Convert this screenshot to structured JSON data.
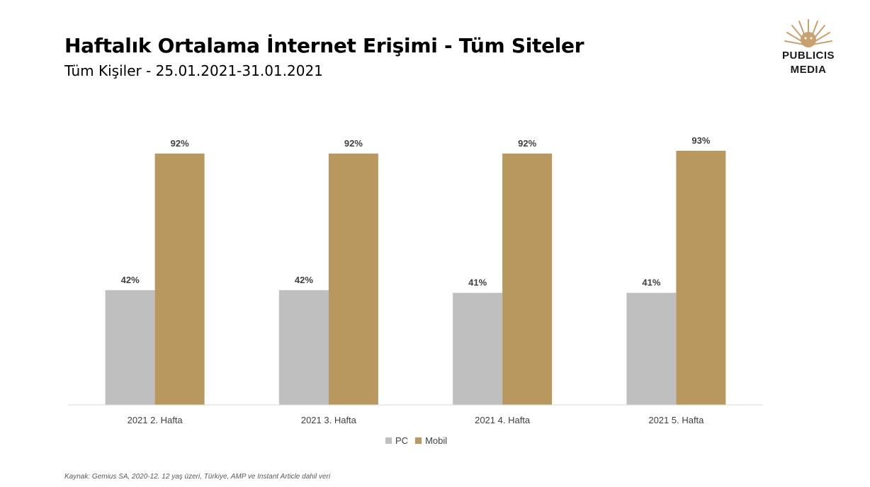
{
  "header": {
    "title": "Haftalık Ortalama İnternet Erişimi  - Tüm Siteler",
    "subtitle": "Tüm Kişiler  - 25.01.2021-31.01.2021"
  },
  "logo": {
    "line1": "PUBLICIS",
    "line2": "MEDIA",
    "color": "#c9a070"
  },
  "footer": {
    "source": "Kaynak: Gemius SA, 2020-12. 12 yaş üzeri, Türkiye, AMP ve Instant Article dahil veri"
  },
  "chart_data": {
    "type": "bar",
    "categories": [
      "2021 2. Hafta",
      "2021 3. Hafta",
      "2021 4. Hafta",
      "2021 5. Hafta"
    ],
    "series": [
      {
        "name": "PC",
        "values": [
          42,
          42,
          41,
          41
        ],
        "labels": [
          "42%",
          "42%",
          "41%",
          "41%"
        ],
        "color": "#bfbfbf"
      },
      {
        "name": "Mobil",
        "values": [
          92,
          92,
          92,
          93
        ],
        "labels": [
          "92%",
          "92%",
          "92%",
          "93%"
        ],
        "color": "#b8985e"
      }
    ],
    "ylim": [
      0,
      100
    ],
    "grid": false,
    "legend": "bottom"
  }
}
